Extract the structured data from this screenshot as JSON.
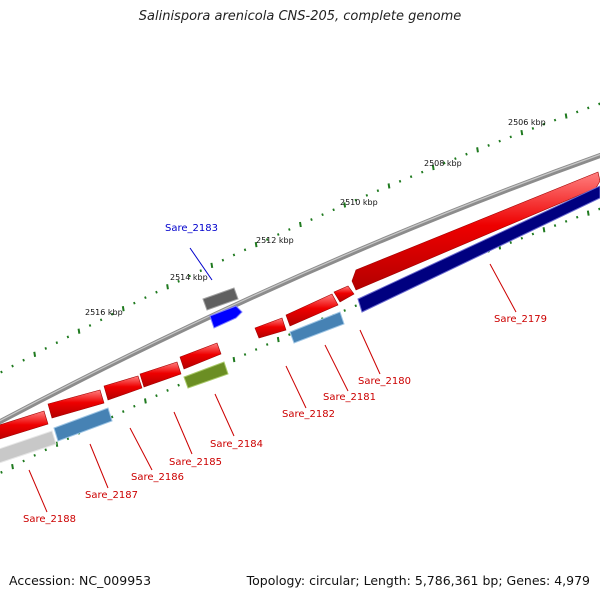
{
  "title": "Salinispora arenicola CNS-205, complete genome",
  "footer": {
    "accession": "Accession: NC_009953",
    "summary": "Topology: circular; Length: 5,786,361 bp; Genes: 4,979"
  },
  "colors": {
    "ruler": "#1f7a1f",
    "backbone": "#7a7a7a",
    "cds_red": "#e60000",
    "cds_navy": "#000080",
    "cds_steel": "#4682b4",
    "cds_blue": "#0000ff",
    "cds_gray": "#606060",
    "cds_olive": "#6b8e23",
    "cds_light": "#c8c8c8",
    "label_red": "#cc0000",
    "label_blue": "#0000cc"
  },
  "ruler_labels": [
    "2506 kbp",
    "2508 kbp",
    "2510 kbp",
    "2512 kbp",
    "2514 kbp",
    "2516 kbp"
  ],
  "gene_labels": [
    {
      "id": "sare-2179",
      "text": "Sare_2179",
      "color": "red"
    },
    {
      "id": "sare-2180",
      "text": "Sare_2180",
      "color": "red"
    },
    {
      "id": "sare-2181",
      "text": "Sare_2181",
      "color": "red"
    },
    {
      "id": "sare-2182",
      "text": "Sare_2182",
      "color": "red"
    },
    {
      "id": "sare-2183",
      "text": "Sare_2183",
      "color": "blue"
    },
    {
      "id": "sare-2184",
      "text": "Sare_2184",
      "color": "red"
    },
    {
      "id": "sare-2185",
      "text": "Sare_2185",
      "color": "red"
    },
    {
      "id": "sare-2186",
      "text": "Sare_2186",
      "color": "red"
    },
    {
      "id": "sare-2187",
      "text": "Sare_2187",
      "color": "red"
    },
    {
      "id": "sare-2188",
      "text": "Sare_2188",
      "color": "red"
    }
  ]
}
